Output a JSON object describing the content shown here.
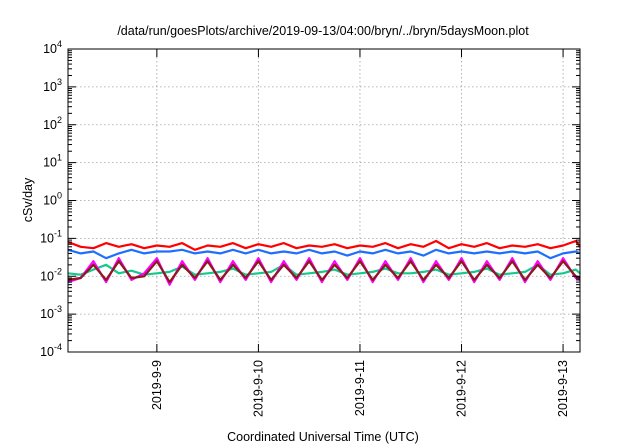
{
  "chart_data": {
    "type": "line",
    "title": "/data/run/goesPlots/archive/2019-09-13/04:00/bryn/../bryn/5daysMoon.plot",
    "xlabel": "Coordinated Universal Time (UTC)",
    "ylabel": "cSv/day",
    "y_scale": "log",
    "ylim": [
      0.0001,
      10000
    ],
    "y_ticks": [
      {
        "base": "10",
        "exp": "-4",
        "value": 0.0001
      },
      {
        "base": "10",
        "exp": "-3",
        "value": 0.001
      },
      {
        "base": "10",
        "exp": "-2",
        "value": 0.01
      },
      {
        "base": "10",
        "exp": "-1",
        "value": 0.1
      },
      {
        "base": "10",
        "exp": "0",
        "value": 1
      },
      {
        "base": "10",
        "exp": "1",
        "value": 10
      },
      {
        "base": "10",
        "exp": "2",
        "value": 100
      },
      {
        "base": "10",
        "exp": "3",
        "value": 1000
      },
      {
        "base": "10",
        "exp": "4",
        "value": 10000
      }
    ],
    "xlim": [
      "2019-09-08T03:00",
      "2019-09-13T04:00"
    ],
    "x_ticks": [
      {
        "label": "2019-9-9",
        "value": "2019-09-09T00:00"
      },
      {
        "label": "2019-9-10",
        "value": "2019-09-10T00:00"
      },
      {
        "label": "2019-9-11",
        "value": "2019-09-11T00:00"
      },
      {
        "label": "2019-9-12",
        "value": "2019-09-12T00:00"
      },
      {
        "label": "2019-9-13",
        "value": "2019-09-13T00:00"
      }
    ],
    "grid": true,
    "legend": "none",
    "series": [
      {
        "color": "#ff0000",
        "x": [
          "2019-09-08T03:00",
          "2019-09-08T06:00",
          "2019-09-08T09:00",
          "2019-09-08T12:00",
          "2019-09-08T15:00",
          "2019-09-08T18:00",
          "2019-09-08T21:00",
          "2019-09-09T00:00",
          "2019-09-09T03:00",
          "2019-09-09T06:00",
          "2019-09-09T09:00",
          "2019-09-09T12:00",
          "2019-09-09T15:00",
          "2019-09-09T18:00",
          "2019-09-09T21:00",
          "2019-09-10T00:00",
          "2019-09-10T03:00",
          "2019-09-10T06:00",
          "2019-09-10T09:00",
          "2019-09-10T12:00",
          "2019-09-10T15:00",
          "2019-09-10T18:00",
          "2019-09-10T21:00",
          "2019-09-11T00:00",
          "2019-09-11T03:00",
          "2019-09-11T06:00",
          "2019-09-11T09:00",
          "2019-09-11T12:00",
          "2019-09-11T15:00",
          "2019-09-11T18:00",
          "2019-09-11T21:00",
          "2019-09-12T00:00",
          "2019-09-12T03:00",
          "2019-09-12T06:00",
          "2019-09-12T09:00",
          "2019-09-12T12:00",
          "2019-09-12T15:00",
          "2019-09-12T18:00",
          "2019-09-12T21:00",
          "2019-09-13T00:00",
          "2019-09-13T03:00",
          "2019-09-13T04:00"
        ],
        "y": [
          0.08,
          0.06,
          0.055,
          0.075,
          0.06,
          0.07,
          0.055,
          0.065,
          0.06,
          0.075,
          0.05,
          0.065,
          0.06,
          0.075,
          0.055,
          0.07,
          0.06,
          0.075,
          0.055,
          0.065,
          0.06,
          0.07,
          0.055,
          0.065,
          0.06,
          0.075,
          0.055,
          0.07,
          0.06,
          0.085,
          0.055,
          0.07,
          0.06,
          0.075,
          0.055,
          0.065,
          0.06,
          0.07,
          0.055,
          0.065,
          0.085,
          0.06
        ]
      },
      {
        "color": "#1f6fff",
        "x": [
          "2019-09-08T03:00",
          "2019-09-08T06:00",
          "2019-09-08T09:00",
          "2019-09-08T12:00",
          "2019-09-08T15:00",
          "2019-09-08T18:00",
          "2019-09-08T21:00",
          "2019-09-09T00:00",
          "2019-09-09T03:00",
          "2019-09-09T06:00",
          "2019-09-09T09:00",
          "2019-09-09T12:00",
          "2019-09-09T15:00",
          "2019-09-09T18:00",
          "2019-09-09T21:00",
          "2019-09-10T00:00",
          "2019-09-10T03:00",
          "2019-09-10T06:00",
          "2019-09-10T09:00",
          "2019-09-10T12:00",
          "2019-09-10T15:00",
          "2019-09-10T18:00",
          "2019-09-10T21:00",
          "2019-09-11T00:00",
          "2019-09-11T03:00",
          "2019-09-11T06:00",
          "2019-09-11T09:00",
          "2019-09-11T12:00",
          "2019-09-11T15:00",
          "2019-09-11T18:00",
          "2019-09-11T21:00",
          "2019-09-12T00:00",
          "2019-09-12T03:00",
          "2019-09-12T06:00",
          "2019-09-12T09:00",
          "2019-09-12T12:00",
          "2019-09-12T15:00",
          "2019-09-12T18:00",
          "2019-09-12T21:00",
          "2019-09-13T00:00",
          "2019-09-13T03:00",
          "2019-09-13T04:00"
        ],
        "y": [
          0.05,
          0.04,
          0.045,
          0.03,
          0.04,
          0.05,
          0.04,
          0.045,
          0.045,
          0.05,
          0.04,
          0.045,
          0.04,
          0.05,
          0.04,
          0.05,
          0.04,
          0.045,
          0.04,
          0.05,
          0.04,
          0.045,
          0.035,
          0.045,
          0.04,
          0.05,
          0.04,
          0.045,
          0.035,
          0.05,
          0.04,
          0.045,
          0.04,
          0.045,
          0.04,
          0.045,
          0.04,
          0.045,
          0.03,
          0.04,
          0.045,
          0.04
        ]
      },
      {
        "color": "#17c88c",
        "x": [
          "2019-09-08T03:00",
          "2019-09-08T06:00",
          "2019-09-08T09:00",
          "2019-09-08T12:00",
          "2019-09-08T15:00",
          "2019-09-08T18:00",
          "2019-09-08T21:00",
          "2019-09-09T00:00",
          "2019-09-09T03:00",
          "2019-09-09T06:00",
          "2019-09-09T09:00",
          "2019-09-09T12:00",
          "2019-09-09T15:00",
          "2019-09-09T18:00",
          "2019-09-09T21:00",
          "2019-09-10T00:00",
          "2019-09-10T03:00",
          "2019-09-10T06:00",
          "2019-09-10T09:00",
          "2019-09-10T12:00",
          "2019-09-10T15:00",
          "2019-09-10T18:00",
          "2019-09-10T21:00",
          "2019-09-11T00:00",
          "2019-09-11T03:00",
          "2019-09-11T06:00",
          "2019-09-11T09:00",
          "2019-09-11T12:00",
          "2019-09-11T15:00",
          "2019-09-11T18:00",
          "2019-09-11T21:00",
          "2019-09-12T00:00",
          "2019-09-12T03:00",
          "2019-09-12T06:00",
          "2019-09-12T09:00",
          "2019-09-12T12:00",
          "2019-09-12T15:00",
          "2019-09-12T18:00",
          "2019-09-12T21:00",
          "2019-09-13T00:00",
          "2019-09-13T03:00",
          "2019-09-13T04:00"
        ],
        "y": [
          0.012,
          0.011,
          0.015,
          0.02,
          0.012,
          0.014,
          0.011,
          0.012,
          0.013,
          0.018,
          0.011,
          0.012,
          0.013,
          0.016,
          0.011,
          0.012,
          0.013,
          0.02,
          0.011,
          0.012,
          0.013,
          0.015,
          0.011,
          0.012,
          0.013,
          0.016,
          0.012,
          0.012,
          0.013,
          0.015,
          0.011,
          0.012,
          0.013,
          0.016,
          0.011,
          0.012,
          0.013,
          0.02,
          0.011,
          0.012,
          0.015,
          0.012
        ]
      },
      {
        "color": "#ff00ff",
        "x": [
          "2019-09-08T03:00",
          "2019-09-08T06:00",
          "2019-09-08T09:00",
          "2019-09-08T12:00",
          "2019-09-08T15:00",
          "2019-09-08T18:00",
          "2019-09-08T21:00",
          "2019-09-09T00:00",
          "2019-09-09T03:00",
          "2019-09-09T06:00",
          "2019-09-09T09:00",
          "2019-09-09T12:00",
          "2019-09-09T15:00",
          "2019-09-09T18:00",
          "2019-09-09T21:00",
          "2019-09-10T00:00",
          "2019-09-10T03:00",
          "2019-09-10T06:00",
          "2019-09-10T09:00",
          "2019-09-10T12:00",
          "2019-09-10T15:00",
          "2019-09-10T18:00",
          "2019-09-10T21:00",
          "2019-09-11T00:00",
          "2019-09-11T03:00",
          "2019-09-11T06:00",
          "2019-09-11T09:00",
          "2019-09-11T12:00",
          "2019-09-11T15:00",
          "2019-09-11T18:00",
          "2019-09-11T21:00",
          "2019-09-12T00:00",
          "2019-09-12T03:00",
          "2019-09-12T06:00",
          "2019-09-12T09:00",
          "2019-09-12T12:00",
          "2019-09-12T15:00",
          "2019-09-12T18:00",
          "2019-09-12T21:00",
          "2019-09-13T00:00",
          "2019-09-13T03:00",
          "2019-09-13T04:00"
        ],
        "y": [
          0.007,
          0.009,
          0.025,
          0.007,
          0.03,
          0.008,
          0.012,
          0.03,
          0.006,
          0.025,
          0.008,
          0.03,
          0.007,
          0.025,
          0.008,
          0.03,
          0.007,
          0.025,
          0.008,
          0.03,
          0.007,
          0.025,
          0.008,
          0.03,
          0.007,
          0.025,
          0.008,
          0.03,
          0.007,
          0.025,
          0.008,
          0.03,
          0.007,
          0.025,
          0.008,
          0.03,
          0.007,
          0.025,
          0.008,
          0.03,
          0.009,
          0.008
        ]
      },
      {
        "color": "#8b1a1a",
        "x": [
          "2019-09-08T03:00",
          "2019-09-08T06:00",
          "2019-09-08T09:00",
          "2019-09-08T12:00",
          "2019-09-08T15:00",
          "2019-09-08T18:00",
          "2019-09-08T21:00",
          "2019-09-09T00:00",
          "2019-09-09T03:00",
          "2019-09-09T06:00",
          "2019-09-09T09:00",
          "2019-09-09T12:00",
          "2019-09-09T15:00",
          "2019-09-09T18:00",
          "2019-09-09T21:00",
          "2019-09-10T00:00",
          "2019-09-10T03:00",
          "2019-09-10T06:00",
          "2019-09-10T09:00",
          "2019-09-10T12:00",
          "2019-09-10T15:00",
          "2019-09-10T18:00",
          "2019-09-10T21:00",
          "2019-09-11T00:00",
          "2019-09-11T03:00",
          "2019-09-11T06:00",
          "2019-09-11T09:00",
          "2019-09-11T12:00",
          "2019-09-11T15:00",
          "2019-09-11T18:00",
          "2019-09-11T21:00",
          "2019-09-12T00:00",
          "2019-09-12T03:00",
          "2019-09-12T06:00",
          "2019-09-12T09:00",
          "2019-09-12T12:00",
          "2019-09-12T15:00",
          "2019-09-12T18:00",
          "2019-09-12T21:00",
          "2019-09-13T00:00",
          "2019-09-13T03:00",
          "2019-09-13T04:00"
        ],
        "y": [
          0.008,
          0.009,
          0.02,
          0.008,
          0.025,
          0.009,
          0.01,
          0.025,
          0.007,
          0.02,
          0.009,
          0.025,
          0.008,
          0.02,
          0.009,
          0.025,
          0.008,
          0.02,
          0.009,
          0.025,
          0.008,
          0.02,
          0.009,
          0.025,
          0.008,
          0.02,
          0.009,
          0.025,
          0.008,
          0.02,
          0.009,
          0.025,
          0.008,
          0.02,
          0.009,
          0.025,
          0.008,
          0.02,
          0.009,
          0.025,
          0.01,
          0.009
        ]
      }
    ]
  }
}
